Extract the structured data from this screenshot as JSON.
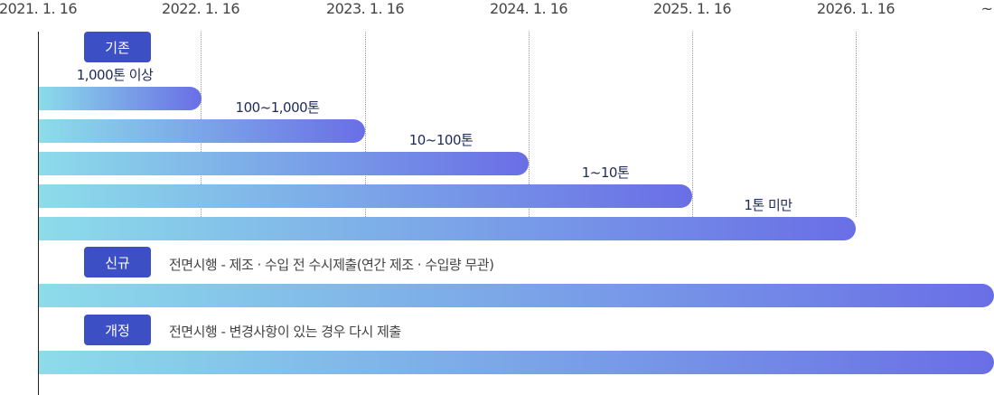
{
  "years": [
    "2021. 1. 16",
    "2022. 1. 16",
    "2023. 1. 16",
    "2024. 1. 16",
    "2025. 1. 16",
    "2026. 1. 16",
    "~"
  ],
  "sections": {
    "existing": {
      "badge": "기존",
      "tiers": [
        "1,000톤 이상",
        "100~1,000톤",
        "10~100톤",
        "1~10톤",
        "1톤 미만"
      ]
    },
    "new": {
      "badge": "신규",
      "desc": "전면시행 - 제조 · 수입 전 수시제출(연간 제조 · 수입량 무관)"
    },
    "revised": {
      "badge": "개정",
      "desc": "전면시행 - 변경사항이 있는 경우 다시 제출"
    }
  },
  "colors": {
    "badge": "#3d4fc4",
    "bar_start": "#8cdcea",
    "bar_end": "#6a6ee6"
  }
}
